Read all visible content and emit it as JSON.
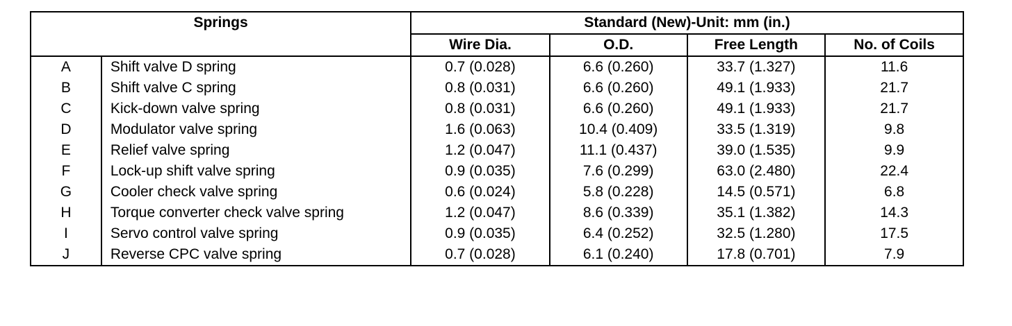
{
  "table": {
    "header": {
      "springs": "Springs",
      "standard": "Standard (New)-Unit: mm (in.)",
      "columns": [
        "Wire Dia.",
        "O.D.",
        "Free Length",
        "No. of Coils"
      ]
    },
    "rows": [
      [
        "A",
        "Shift valve D spring",
        "0.7 (0.028)",
        "6.6 (0.260)",
        "33.7 (1.327)",
        "11.6"
      ],
      [
        "B",
        "Shift valve C spring",
        "0.8 (0.031)",
        "6.6 (0.260)",
        "49.1 (1.933)",
        "21.7"
      ],
      [
        "C",
        "Kick-down valve spring",
        "0.8 (0.031)",
        "6.6 (0.260)",
        "49.1 (1.933)",
        "21.7"
      ],
      [
        "D",
        "Modulator valve spring",
        "1.6 (0.063)",
        "10.4 (0.409)",
        "33.5 (1.319)",
        "9.8"
      ],
      [
        "E",
        "Relief valve spring",
        "1.2 (0.047)",
        "11.1 (0.437)",
        "39.0 (1.535)",
        "9.9"
      ],
      [
        "F",
        "Lock-up shift valve spring",
        "0.9 (0.035)",
        "7.6 (0.299)",
        "63.0 (2.480)",
        "22.4"
      ],
      [
        "G",
        "Cooler check valve spring",
        "0.6 (0.024)",
        "5.8 (0.228)",
        "14.5 (0.571)",
        "6.8"
      ],
      [
        "H",
        "Torque converter check valve spring",
        "1.2 (0.047)",
        "8.6 (0.339)",
        "35.1 (1.382)",
        "14.3"
      ],
      [
        "I",
        "Servo control valve spring",
        "0.9 (0.035)",
        "6.4 (0.252)",
        "32.5 (1.280)",
        "17.5"
      ],
      [
        "J",
        "Reverse CPC valve spring",
        "0.7 (0.028)",
        "6.1 (0.240)",
        "17.8 (0.701)",
        "7.9"
      ]
    ]
  }
}
